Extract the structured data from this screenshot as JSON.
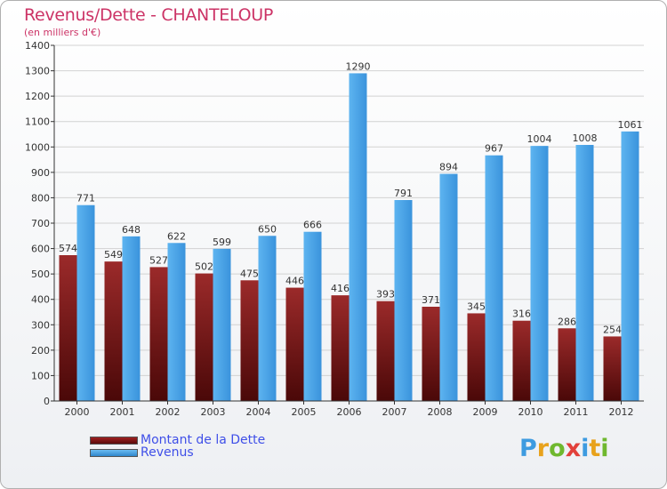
{
  "header": {
    "title": "Revenus/Dette - CHANTELOUP",
    "subtitle": "(en milliers d'€)"
  },
  "colors": {
    "title": "#cc3366",
    "dette": "#7a1414",
    "revenus": "#4aa3e8",
    "legend_text": "#3f4fe8",
    "axis": "#333333"
  },
  "chart_data": {
    "type": "bar",
    "title": "Revenus/Dette - CHANTELOUP",
    "subtitle": "(en milliers d'€)",
    "xlabel": "",
    "ylabel": "",
    "ylim": [
      0,
      1400
    ],
    "ytick_step": 100,
    "grid": true,
    "legend_position": "bottom-left",
    "categories": [
      "2000",
      "2001",
      "2002",
      "2003",
      "2004",
      "2005",
      "2006",
      "2007",
      "2008",
      "2009",
      "2010",
      "2011",
      "2012"
    ],
    "series": [
      {
        "name": "Montant de la Dette",
        "color": "#7a1414",
        "values": [
          574,
          549,
          527,
          502,
          475,
          446,
          416,
          393,
          371,
          345,
          316,
          286,
          254
        ]
      },
      {
        "name": "Revenus",
        "color": "#4aa3e8",
        "values": [
          771,
          648,
          622,
          599,
          650,
          666,
          1290,
          791,
          894,
          967,
          1004,
          1008,
          1061
        ]
      }
    ]
  },
  "legend": {
    "items": [
      {
        "label": "Montant de la Dette",
        "color": "#7a1414"
      },
      {
        "label": "Revenus",
        "color": "#4aa3e8"
      }
    ]
  },
  "logo": {
    "text": "Proxiti",
    "letter_colors": [
      "#3d9be0",
      "#e8a21c",
      "#6fb82e",
      "#e2403a",
      "#3d9be0",
      "#e8a21c",
      "#6fb82e"
    ]
  }
}
